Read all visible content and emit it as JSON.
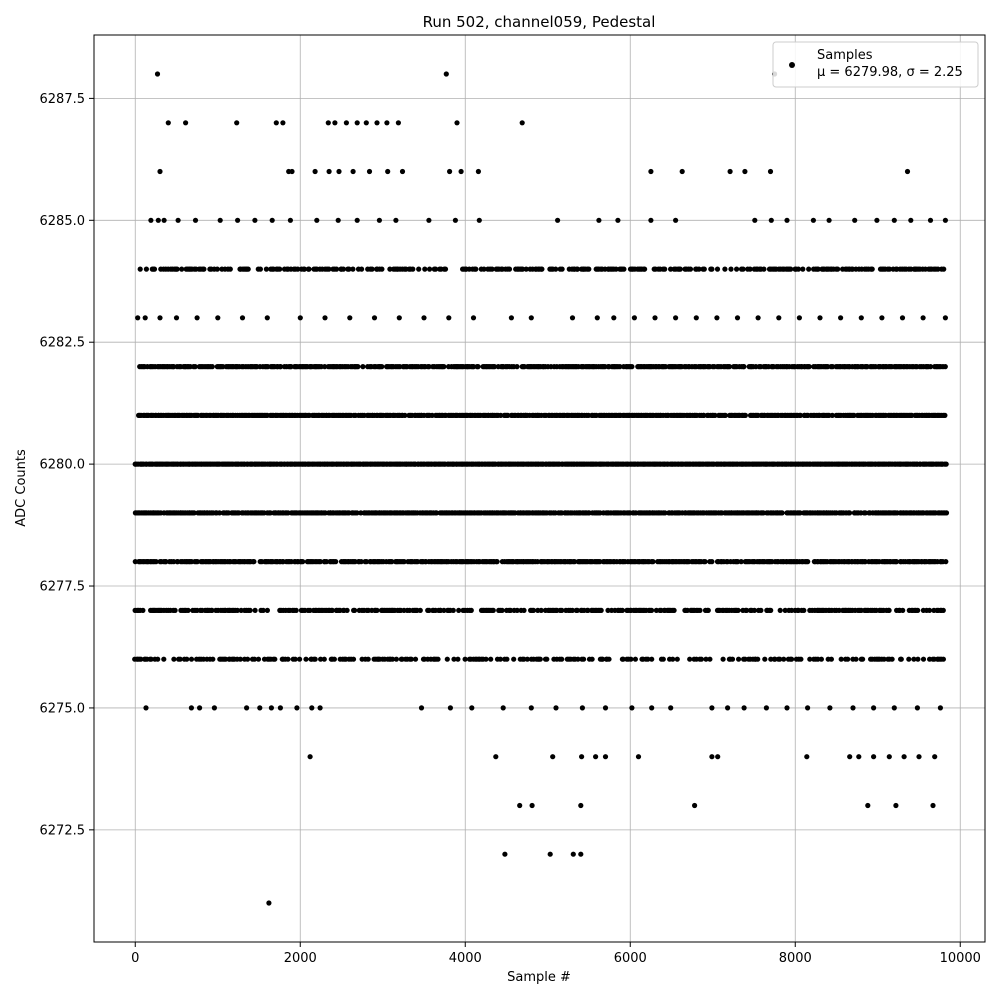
{
  "chart_data": {
    "type": "scatter",
    "title": "Run 502, channel059, Pedestal",
    "xlabel": "Sample #",
    "ylabel": "ADC Counts",
    "xlim": [
      -500,
      10300
    ],
    "ylim": [
      6270.2,
      6288.8
    ],
    "x_ticks": [
      0,
      2000,
      4000,
      6000,
      8000,
      10000
    ],
    "x_tick_labels": [
      "0",
      "2000",
      "4000",
      "6000",
      "8000",
      "10000"
    ],
    "y_ticks": [
      6272.5,
      6275.0,
      6277.5,
      6280.0,
      6282.5,
      6285.0,
      6287.5
    ],
    "y_tick_labels": [
      "6272.5",
      "6275.0",
      "6277.5",
      "6280.0",
      "6282.5",
      "6285.0",
      "6287.5"
    ],
    "grid": true,
    "legend": {
      "placement": "top-right",
      "entries": [
        {
          "name": "Samples",
          "stats": "μ = 6279.98, σ = 2.25"
        }
      ]
    },
    "marker_color": "#000000",
    "series": [
      {
        "name": "Samples",
        "points": [
          [
            270,
            6288
          ],
          [
            3770,
            6288
          ],
          [
            7750,
            6288
          ],
          [
            400,
            6287
          ],
          [
            610,
            6287
          ],
          [
            1230,
            6287
          ],
          [
            1710,
            6287
          ],
          [
            1790,
            6287
          ],
          [
            2340,
            6287
          ],
          [
            2420,
            6287
          ],
          [
            2560,
            6287
          ],
          [
            2690,
            6287
          ],
          [
            2800,
            6287
          ],
          [
            2930,
            6287
          ],
          [
            3050,
            6287
          ],
          [
            3190,
            6287
          ],
          [
            3900,
            6287
          ],
          [
            4690,
            6287
          ],
          [
            300,
            6286
          ],
          [
            1860,
            6286
          ],
          [
            1900,
            6286
          ],
          [
            2180,
            6286
          ],
          [
            2350,
            6286
          ],
          [
            2470,
            6286
          ],
          [
            2640,
            6286
          ],
          [
            2840,
            6286
          ],
          [
            3060,
            6286
          ],
          [
            3240,
            6286
          ],
          [
            3810,
            6286
          ],
          [
            3950,
            6286
          ],
          [
            4160,
            6286
          ],
          [
            6250,
            6286
          ],
          [
            6630,
            6286
          ],
          [
            7210,
            6286
          ],
          [
            7390,
            6286
          ],
          [
            7700,
            6286
          ],
          [
            9360,
            6286
          ],
          [
            190,
            6285
          ],
          [
            280,
            6285
          ],
          [
            350,
            6285
          ],
          [
            520,
            6285
          ],
          [
            730,
            6285
          ],
          [
            1030,
            6285
          ],
          [
            1240,
            6285
          ],
          [
            1450,
            6285
          ],
          [
            1660,
            6285
          ],
          [
            1880,
            6285
          ],
          [
            2200,
            6285
          ],
          [
            2460,
            6285
          ],
          [
            2690,
            6285
          ],
          [
            2960,
            6285
          ],
          [
            3160,
            6285
          ],
          [
            3560,
            6285
          ],
          [
            3880,
            6285
          ],
          [
            4170,
            6285
          ],
          [
            5120,
            6285
          ],
          [
            5620,
            6285
          ],
          [
            5850,
            6285
          ],
          [
            6250,
            6285
          ],
          [
            6550,
            6285
          ],
          [
            7510,
            6285
          ],
          [
            7710,
            6285
          ],
          [
            7900,
            6285
          ],
          [
            8220,
            6285
          ],
          [
            8410,
            6285
          ],
          [
            8720,
            6285
          ],
          [
            8990,
            6285
          ],
          [
            9200,
            6285
          ],
          [
            9400,
            6285
          ],
          [
            9640,
            6285
          ],
          [
            9820,
            6285
          ],
          [
            30,
            6283
          ],
          [
            120,
            6283
          ],
          [
            300,
            6283
          ],
          [
            500,
            6283
          ],
          [
            750,
            6283
          ],
          [
            1000,
            6283
          ],
          [
            1300,
            6283
          ],
          [
            1600,
            6283
          ],
          [
            2000,
            6283
          ],
          [
            2300,
            6283
          ],
          [
            2600,
            6283
          ],
          [
            2900,
            6283
          ],
          [
            3200,
            6283
          ],
          [
            3500,
            6283
          ],
          [
            3800,
            6283
          ],
          [
            4100,
            6283
          ],
          [
            4560,
            6283
          ],
          [
            4800,
            6283
          ],
          [
            5300,
            6283
          ],
          [
            5600,
            6283
          ],
          [
            5800,
            6283
          ],
          [
            6050,
            6283
          ],
          [
            6300,
            6283
          ],
          [
            6550,
            6283
          ],
          [
            6800,
            6283
          ],
          [
            7050,
            6283
          ],
          [
            7300,
            6283
          ],
          [
            7550,
            6283
          ],
          [
            7800,
            6283
          ],
          [
            8050,
            6283
          ],
          [
            8300,
            6283
          ],
          [
            8550,
            6283
          ],
          [
            8800,
            6283
          ],
          [
            9050,
            6283
          ],
          [
            9300,
            6283
          ],
          [
            9550,
            6283
          ],
          [
            9820,
            6283
          ],
          [
            130,
            6275
          ],
          [
            680,
            6275
          ],
          [
            780,
            6275
          ],
          [
            960,
            6275
          ],
          [
            1350,
            6275
          ],
          [
            1510,
            6275
          ],
          [
            1650,
            6275
          ],
          [
            1760,
            6275
          ],
          [
            1960,
            6275
          ],
          [
            2140,
            6275
          ],
          [
            2240,
            6275
          ],
          [
            3470,
            6275
          ],
          [
            3820,
            6275
          ],
          [
            4080,
            6275
          ],
          [
            4460,
            6275
          ],
          [
            4800,
            6275
          ],
          [
            5100,
            6275
          ],
          [
            5420,
            6275
          ],
          [
            5700,
            6275
          ],
          [
            6020,
            6275
          ],
          [
            6260,
            6275
          ],
          [
            6490,
            6275
          ],
          [
            6990,
            6275
          ],
          [
            7180,
            6275
          ],
          [
            7380,
            6275
          ],
          [
            7650,
            6275
          ],
          [
            7900,
            6275
          ],
          [
            8150,
            6275
          ],
          [
            8420,
            6275
          ],
          [
            8700,
            6275
          ],
          [
            8950,
            6275
          ],
          [
            9200,
            6275
          ],
          [
            9480,
            6275
          ],
          [
            9760,
            6275
          ],
          [
            2120,
            6274
          ],
          [
            4370,
            6274
          ],
          [
            5060,
            6274
          ],
          [
            5410,
            6274
          ],
          [
            5580,
            6274
          ],
          [
            5700,
            6274
          ],
          [
            6100,
            6274
          ],
          [
            6990,
            6274
          ],
          [
            7060,
            6274
          ],
          [
            8140,
            6274
          ],
          [
            8660,
            6274
          ],
          [
            8770,
            6274
          ],
          [
            8950,
            6274
          ],
          [
            9140,
            6274
          ],
          [
            9320,
            6274
          ],
          [
            9500,
            6274
          ],
          [
            9690,
            6274
          ],
          [
            4660,
            6273
          ],
          [
            4810,
            6273
          ],
          [
            5400,
            6273
          ],
          [
            6780,
            6273
          ],
          [
            8880,
            6273
          ],
          [
            9220,
            6273
          ],
          [
            9670,
            6273
          ],
          [
            4480,
            6272
          ],
          [
            5030,
            6272
          ],
          [
            5310,
            6272
          ],
          [
            5400,
            6272
          ],
          [
            1620,
            6271
          ]
        ]
      }
    ],
    "dense_levels": [
      {
        "y": 6284,
        "x_min": 40,
        "x_max": 9830,
        "density": 0.55
      },
      {
        "y": 6282,
        "x_min": 40,
        "x_max": 9830,
        "density": 0.8
      },
      {
        "y": 6281,
        "x_min": 40,
        "x_max": 9830,
        "density": 0.9
      },
      {
        "y": 6280,
        "x_min": 0,
        "x_max": 9840,
        "density": 1.0
      },
      {
        "y": 6279,
        "x_min": 0,
        "x_max": 9840,
        "density": 0.9
      },
      {
        "y": 6278,
        "x_min": 0,
        "x_max": 9840,
        "density": 0.85
      },
      {
        "y": 6277,
        "x_min": 0,
        "x_max": 9840,
        "density": 0.6
      },
      {
        "y": 6276,
        "x_min": 0,
        "x_max": 9840,
        "density": 0.45
      }
    ]
  }
}
